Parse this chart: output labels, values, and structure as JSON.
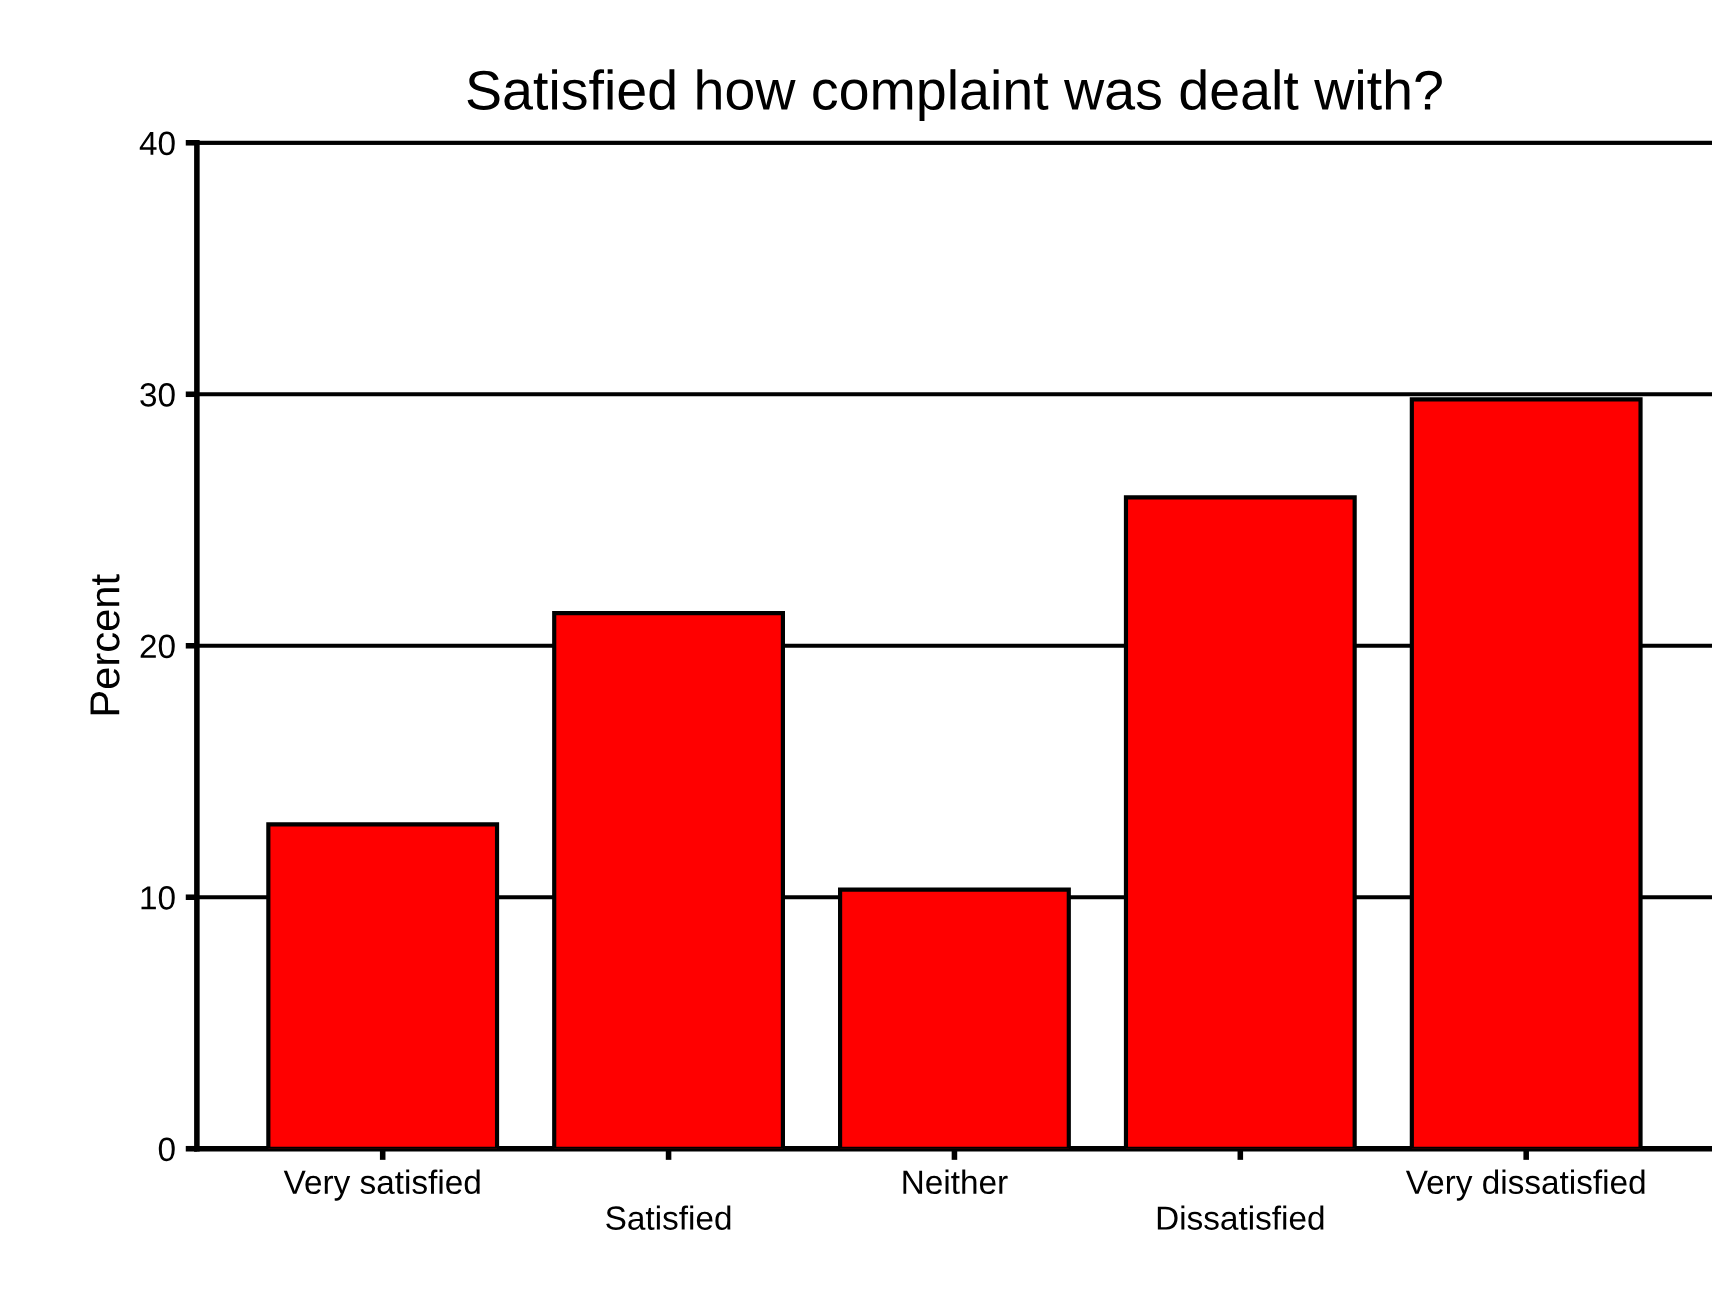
{
  "chart_data": {
    "type": "bar",
    "title": "Satisfied how complaint was dealt with?",
    "ylabel": "Percent",
    "categories": [
      "Very satisfied",
      "Satisfied",
      "Neither",
      "Dissatisfied",
      "Very dissatisfied"
    ],
    "values": [
      12.9,
      21.3,
      10.3,
      25.9,
      29.8
    ],
    "color": "#ff0000",
    "ylim": [
      0,
      40
    ],
    "yticks": [
      0,
      10,
      20,
      30,
      40
    ],
    "grid": "y"
  }
}
